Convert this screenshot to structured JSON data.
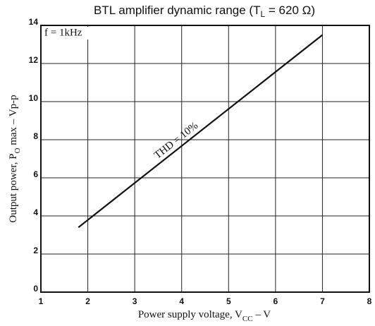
{
  "chart_data": {
    "type": "line",
    "title": [
      "BTL amplifier dynamic range (T",
      "L",
      " = 620 Ω)"
    ],
    "x_label": [
      "Power supply voltage, V",
      "CC",
      " – V"
    ],
    "y_label": [
      "Output power, P",
      "O",
      " max – Vp-p"
    ],
    "annotations": [
      "f = 1kHz",
      "THD = 10%"
    ],
    "x": [
      1.8,
      7
    ],
    "series": [
      {
        "color": "#111111",
        "values": [
          3.4,
          13.5
        ]
      }
    ],
    "xlim": [
      1,
      8
    ],
    "xticks": [
      1,
      2,
      3,
      4,
      5,
      6,
      7,
      8
    ],
    "ylim": [
      0,
      14
    ],
    "yticks": [
      0,
      2,
      4,
      6,
      8,
      10,
      12,
      14
    ],
    "grid": true
  }
}
